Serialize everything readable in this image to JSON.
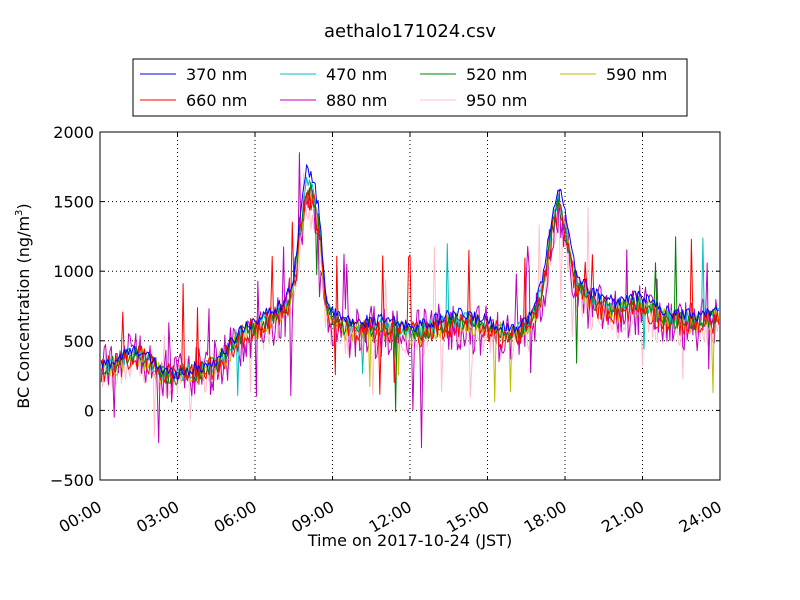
{
  "chart_data": {
    "type": "line",
    "title": "aethalo171024.csv",
    "xlabel": "Time on 2017-10-24 (JST)",
    "ylabel": "BC Concentration (ng/m",
    "ylabel_sup": "3",
    "ylabel_close": ")",
    "xlim": [
      0,
      24
    ],
    "ylim": [
      -500,
      2000
    ],
    "grid": true,
    "legend": "top-center",
    "x_ticks": [
      {
        "value": 0,
        "label": "00:00"
      },
      {
        "value": 3,
        "label": "03:00"
      },
      {
        "value": 6,
        "label": "06:00"
      },
      {
        "value": 9,
        "label": "09:00"
      },
      {
        "value": 12,
        "label": "12:00"
      },
      {
        "value": 15,
        "label": "15:00"
      },
      {
        "value": 18,
        "label": "18:00"
      },
      {
        "value": 21,
        "label": "21:00"
      },
      {
        "value": 24,
        "label": "24:00"
      }
    ],
    "y_ticks": [
      {
        "value": -500,
        "label": "−500"
      },
      {
        "value": 0,
        "label": "0"
      },
      {
        "value": 500,
        "label": "500"
      },
      {
        "value": 1000,
        "label": "1000"
      },
      {
        "value": 1500,
        "label": "1500"
      },
      {
        "value": 2000,
        "label": "2000"
      }
    ],
    "baseline": {
      "x": [
        0,
        0.5,
        1,
        1.5,
        2,
        2.5,
        3,
        3.5,
        4,
        4.5,
        5,
        5.5,
        6,
        6.5,
        7,
        7.25,
        7.5,
        7.75,
        8,
        8.25,
        8.5,
        8.75,
        9,
        9.5,
        10,
        10.5,
        11,
        11.5,
        12,
        12.5,
        13,
        13.5,
        14,
        14.5,
        15,
        15.5,
        16,
        16.5,
        16.75,
        17,
        17.25,
        17.5,
        17.75,
        18,
        18.25,
        18.5,
        19,
        19.5,
        20,
        20.5,
        21,
        21.5,
        22,
        22.5,
        23,
        23.5,
        24
      ],
      "y": [
        300,
        320,
        380,
        400,
        330,
        260,
        250,
        270,
        290,
        330,
        430,
        550,
        600,
        650,
        700,
        760,
        900,
        1300,
        1600,
        1550,
        1300,
        750,
        650,
        600,
        580,
        600,
        600,
        580,
        560,
        570,
        600,
        630,
        640,
        620,
        600,
        560,
        550,
        600,
        650,
        800,
        1000,
        1300,
        1500,
        1320,
        1050,
        900,
        780,
        760,
        720,
        750,
        760,
        700,
        650,
        650,
        630,
        650,
        680
      ]
    },
    "series": [
      {
        "name": "370 nm",
        "color": "#0000ff",
        "noise": 45,
        "scale": 1.08,
        "spikes": 0
      },
      {
        "name": "470 nm",
        "color": "#00bfbf",
        "noise": 60,
        "scale": 1.02,
        "spikes": 2
      },
      {
        "name": "520 nm",
        "color": "#008000",
        "noise": 70,
        "scale": 1.0,
        "spikes": 2
      },
      {
        "name": "590 nm",
        "color": "#bfbf00",
        "noise": 85,
        "scale": 0.98,
        "spikes": 3
      },
      {
        "name": "660 nm",
        "color": "#ff0000",
        "noise": 95,
        "scale": 0.97,
        "spikes": 3
      },
      {
        "name": "880 nm",
        "color": "#bf00bf",
        "noise": 190,
        "scale": 0.95,
        "spikes": 10
      },
      {
        "name": "950 nm",
        "color": "#ffc0cb",
        "noise": 140,
        "scale": 0.9,
        "spikes": 6
      }
    ]
  }
}
